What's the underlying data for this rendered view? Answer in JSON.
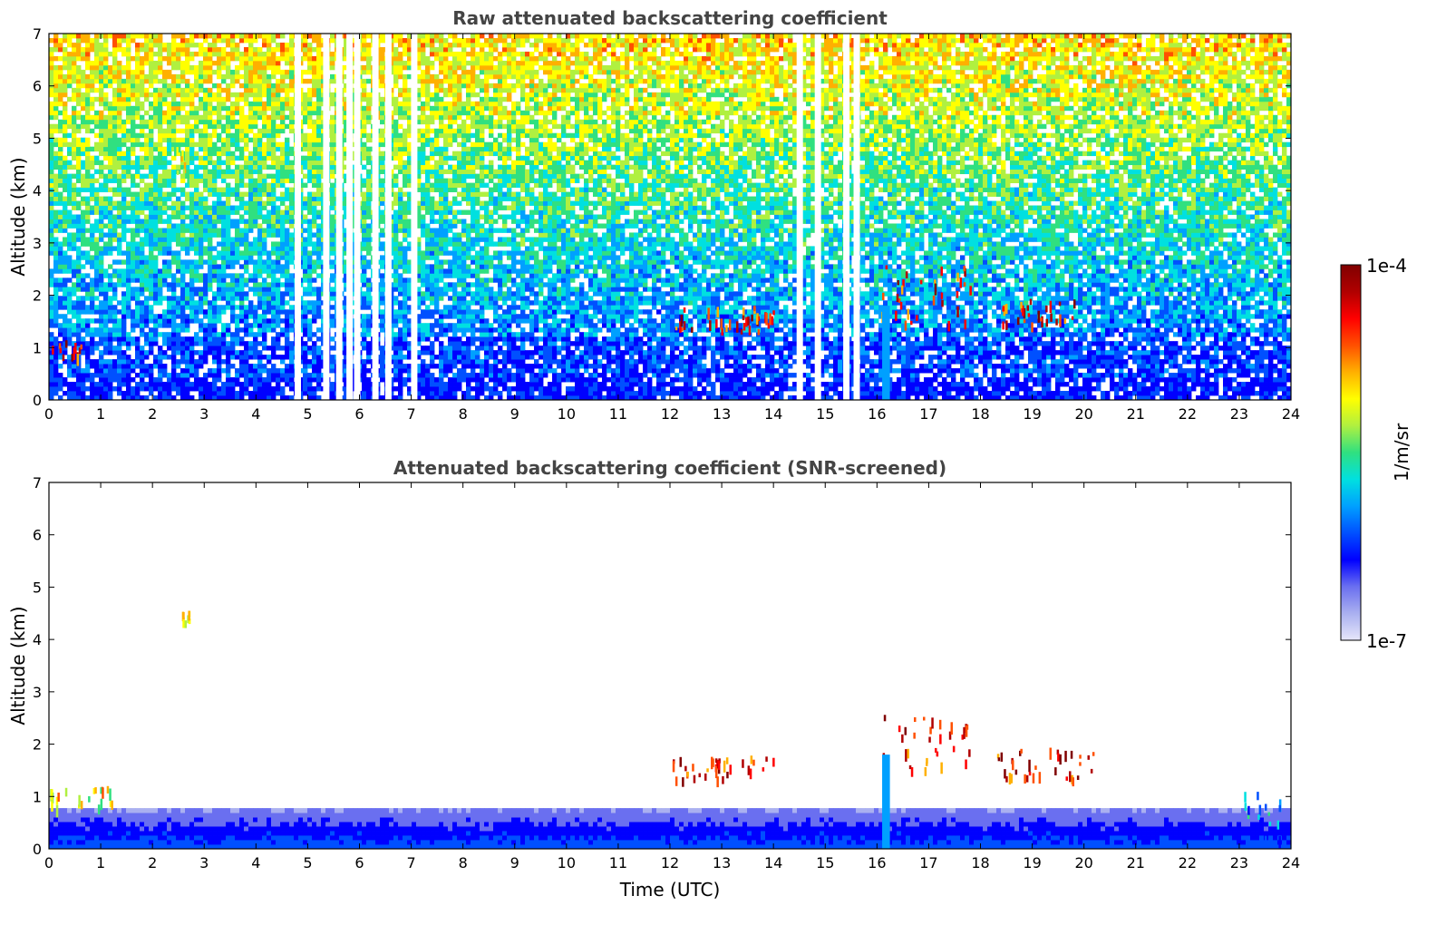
{
  "chart_data": [
    {
      "type": "heatmap",
      "title": "Raw attenuated backscattering coefficient",
      "xlabel": "",
      "ylabel": "Altitude (km)",
      "xlim": [
        0,
        24
      ],
      "ylim": [
        0,
        7
      ],
      "xticks": [
        "0",
        "1",
        "2",
        "3",
        "4",
        "5",
        "6",
        "7",
        "8",
        "9",
        "10",
        "11",
        "12",
        "13",
        "14",
        "15",
        "16",
        "17",
        "18",
        "19",
        "20",
        "21",
        "22",
        "23",
        "24"
      ],
      "yticks": [
        "0",
        "1",
        "2",
        "3",
        "4",
        "5",
        "6",
        "7"
      ],
      "data_gaps_utc": [
        4.8,
        5.35,
        5.6,
        5.8,
        5.95,
        6.3,
        6.55,
        7.05,
        14.5,
        14.85,
        15.4,
        15.6
      ],
      "features": [
        {
          "time_utc": [
            0.0,
            0.65
          ],
          "altitude_km": [
            0.85,
            1.15
          ],
          "intensity": "high"
        },
        {
          "time_utc": [
            2.4,
            2.7
          ],
          "altitude_km": [
            4.3,
            4.9
          ],
          "intensity": "medium"
        },
        {
          "time_utc": [
            12.0,
            14.0
          ],
          "altitude_km": [
            1.35,
            1.8
          ],
          "intensity": "high"
        },
        {
          "time_utc": [
            16.05,
            17.8
          ],
          "altitude_km": [
            1.5,
            2.6
          ],
          "intensity": "high"
        },
        {
          "time_utc": [
            18.3,
            19.8
          ],
          "altitude_km": [
            1.4,
            1.95
          ],
          "intensity": "high"
        },
        {
          "time_utc": [
            16.1,
            16.25
          ],
          "altitude_km": [
            0.0,
            1.8
          ],
          "intensity": "column"
        }
      ]
    },
    {
      "type": "heatmap",
      "title": "Attenuated backscattering coefficient (SNR-screened)",
      "xlabel": "Time (UTC)",
      "ylabel": "Altitude (km)",
      "xlim": [
        0,
        24
      ],
      "ylim": [
        0,
        7
      ],
      "xticks": [
        "0",
        "1",
        "2",
        "3",
        "4",
        "5",
        "6",
        "7",
        "8",
        "9",
        "10",
        "11",
        "12",
        "13",
        "14",
        "15",
        "16",
        "17",
        "18",
        "19",
        "20",
        "21",
        "22",
        "23",
        "24"
      ],
      "yticks": [
        "0",
        "1",
        "2",
        "3",
        "4",
        "5",
        "6",
        "7"
      ],
      "features": [
        {
          "time_utc": [
            0.0,
            1.2
          ],
          "altitude_km": [
            0.8,
            1.2
          ],
          "intensity": "medium"
        },
        {
          "time_utc": [
            2.55,
            2.7
          ],
          "altitude_km": [
            4.35,
            4.55
          ],
          "intensity": "medium"
        },
        {
          "time_utc": [
            12.0,
            14.0
          ],
          "altitude_km": [
            1.35,
            1.8
          ],
          "intensity": "high"
        },
        {
          "time_utc": [
            16.05,
            17.8
          ],
          "altitude_km": [
            1.5,
            2.6
          ],
          "intensity": "high"
        },
        {
          "time_utc": [
            18.3,
            20.2
          ],
          "altitude_km": [
            1.35,
            1.95
          ],
          "intensity": "high"
        },
        {
          "time_utc": [
            16.1,
            16.25
          ],
          "altitude_km": [
            0.0,
            1.8
          ],
          "intensity": "column"
        },
        {
          "time_utc": [
            23.0,
            23.8
          ],
          "altitude_km": [
            0.0,
            1.1
          ],
          "intensity": "low"
        }
      ]
    }
  ],
  "colorbar": {
    "label": "1/m/sr",
    "max_label": "1e-4",
    "min_label": "1e-7",
    "scale": "log",
    "colormap": [
      "#e6e6fa",
      "#aab0f0",
      "#6a6ff0",
      "#0000ff",
      "#0050ff",
      "#00a0ff",
      "#00e0e0",
      "#30e080",
      "#b0f040",
      "#ffff00",
      "#ffb000",
      "#ff5000",
      "#ff0000",
      "#b00000",
      "#800000"
    ]
  }
}
